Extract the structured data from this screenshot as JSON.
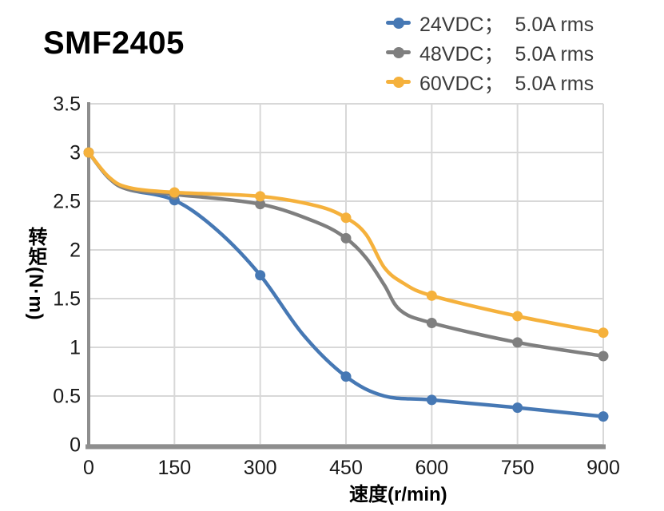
{
  "page_title": "SMF2405",
  "chart_data": {
    "type": "line",
    "title": "SMF2405",
    "xlabel": "速度(r/min)",
    "ylabel": "转矩(N·m)",
    "xlim": [
      0,
      900
    ],
    "ylim": [
      0,
      3.5
    ],
    "x_ticks": [
      "0",
      "150",
      "300",
      "450",
      "600",
      "750",
      "900"
    ],
    "y_ticks": [
      "0",
      "0.5",
      "1",
      "1.5",
      "2",
      "2.5",
      "3",
      "3.5"
    ],
    "grid": true,
    "legend_position": "top-right",
    "categories": [
      0,
      150,
      300,
      450,
      600,
      750,
      900
    ],
    "series": [
      {
        "name": "24VDC；  5.0A rms",
        "color": "#4678B4",
        "values": [
          3.0,
          2.51,
          1.74,
          0.7,
          0.46,
          0.38,
          0.29
        ],
        "curve_x": [
          0,
          35,
          70,
          150,
          225,
          300,
          375,
          450,
          517,
          600,
          750,
          900
        ],
        "curve_y": [
          3.0,
          2.74,
          2.62,
          2.51,
          2.2,
          1.74,
          1.13,
          0.7,
          0.5,
          0.46,
          0.38,
          0.29
        ]
      },
      {
        "name": "48VDC；  5.0A rms",
        "color": "#7F7F7F",
        "values": [
          3.0,
          2.57,
          2.47,
          2.12,
          1.25,
          1.05,
          0.91
        ],
        "curve_x": [
          0,
          35,
          70,
          150,
          300,
          400,
          450,
          485,
          517,
          545,
          600,
          750,
          900
        ],
        "curve_y": [
          3.0,
          2.74,
          2.62,
          2.57,
          2.47,
          2.28,
          2.12,
          1.92,
          1.64,
          1.38,
          1.25,
          1.05,
          0.91
        ]
      },
      {
        "name": "60VDC；  5.0A rms",
        "color": "#F5B13C",
        "values": [
          3.0,
          2.59,
          2.55,
          2.33,
          1.53,
          1.32,
          1.15
        ],
        "curve_x": [
          0,
          35,
          70,
          150,
          300,
          400,
          450,
          485,
          517,
          550,
          600,
          750,
          900
        ],
        "curve_y": [
          3.0,
          2.75,
          2.64,
          2.59,
          2.55,
          2.45,
          2.33,
          2.16,
          1.82,
          1.66,
          1.53,
          1.32,
          1.15
        ]
      }
    ],
    "style": {
      "grid_color": "#D8D8D8",
      "axis_color": "#8E8E8E",
      "tick_color": "#1A1A1A",
      "title_color": "#000000",
      "legend_text_color": "#3C3C3C",
      "background": "#FFFFFF"
    }
  }
}
